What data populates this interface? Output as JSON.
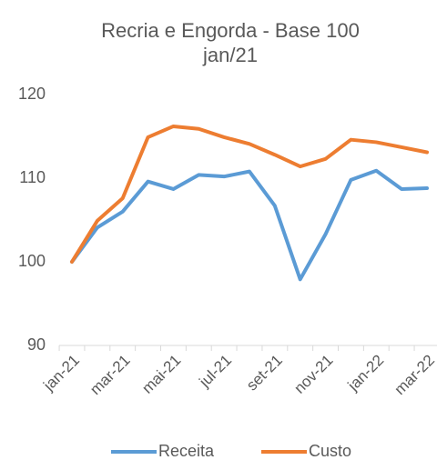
{
  "chart_data": {
    "type": "line",
    "title": [
      "Recria e Engorda - Base 100",
      "jan/21"
    ],
    "categories": [
      "jan-21",
      null,
      "mar-21",
      null,
      "mai-21",
      null,
      "jul-21",
      null,
      "set-21",
      null,
      "nov-21",
      null,
      "jan-22",
      null,
      "mar-22"
    ],
    "series": [
      {
        "name": "Receita",
        "color": "#5b9bd5",
        "values": [
          100,
          104.1,
          106,
          109.6,
          108.7,
          110.4,
          110.2,
          110.8,
          106.7,
          97.9,
          103.3,
          109.8,
          110.9,
          108.7,
          108.8
        ]
      },
      {
        "name": "Custo",
        "color": "#ed7d31",
        "values": [
          100,
          104.9,
          107.6,
          114.9,
          116.2,
          115.9,
          114.9,
          114.1,
          112.8,
          111.4,
          112.3,
          114.6,
          114.3,
          113.7,
          113.1
        ]
      }
    ],
    "ylim": [
      90,
      120
    ],
    "yticks": [
      90,
      100,
      110,
      120
    ],
    "grid": false,
    "legend": "bottom"
  }
}
